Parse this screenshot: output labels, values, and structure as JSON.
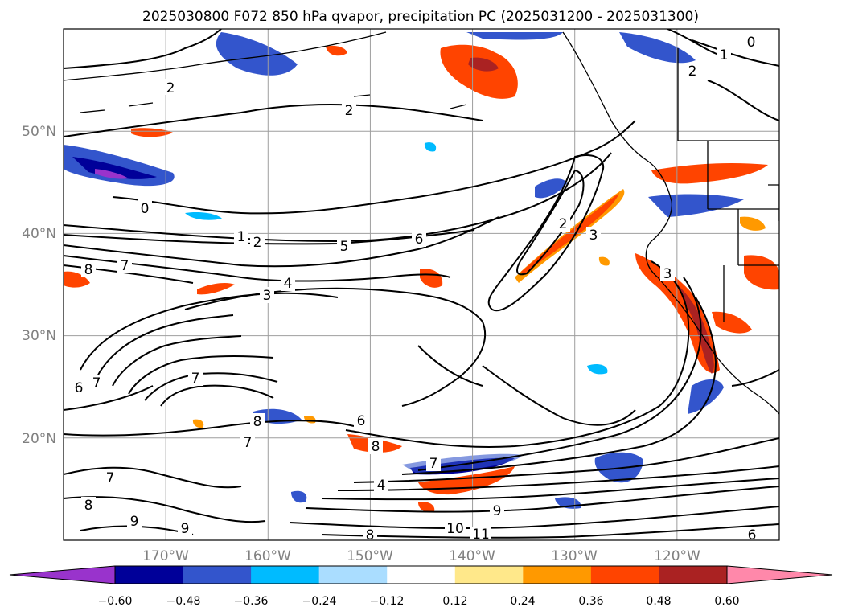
{
  "title": "2025030800 F072 850 hPa qvapor, precipitation PC (2025031200 - 2025031300)",
  "map": {
    "lon_labels": [
      "170°W",
      "160°W",
      "150°W",
      "140°W",
      "130°W",
      "120°W"
    ],
    "lat_labels": [
      "50°N",
      "40°N",
      "30°N",
      "20°N"
    ],
    "lon_range": [
      -180,
      -110
    ],
    "lat_range": [
      10,
      60
    ]
  },
  "colorbar": {
    "ticks": [
      "−0.60",
      "−0.48",
      "−0.36",
      "−0.24",
      "−0.12",
      "0.12",
      "0.24",
      "0.36",
      "0.48",
      "0.60"
    ],
    "colors": [
      "#9933cc",
      "#000099",
      "#3355cc",
      "#00bbff",
      "#aaddff",
      "#ffffff",
      "#ffe88a",
      "#ff9900",
      "#ff4400",
      "#aa2222",
      "#ff88aa"
    ],
    "extend": "both"
  },
  "contour_labels": [
    "2",
    "2",
    "0",
    "1",
    "2",
    "5",
    "6",
    "2",
    "3",
    "8",
    "7",
    "4",
    "3",
    "3",
    "7",
    "6",
    "7",
    "8",
    "7",
    "6",
    "8",
    "4",
    "7",
    "7",
    "8",
    "9",
    "9",
    "9",
    "10",
    "11",
    "8",
    "6",
    "0",
    "1",
    "2"
  ]
}
